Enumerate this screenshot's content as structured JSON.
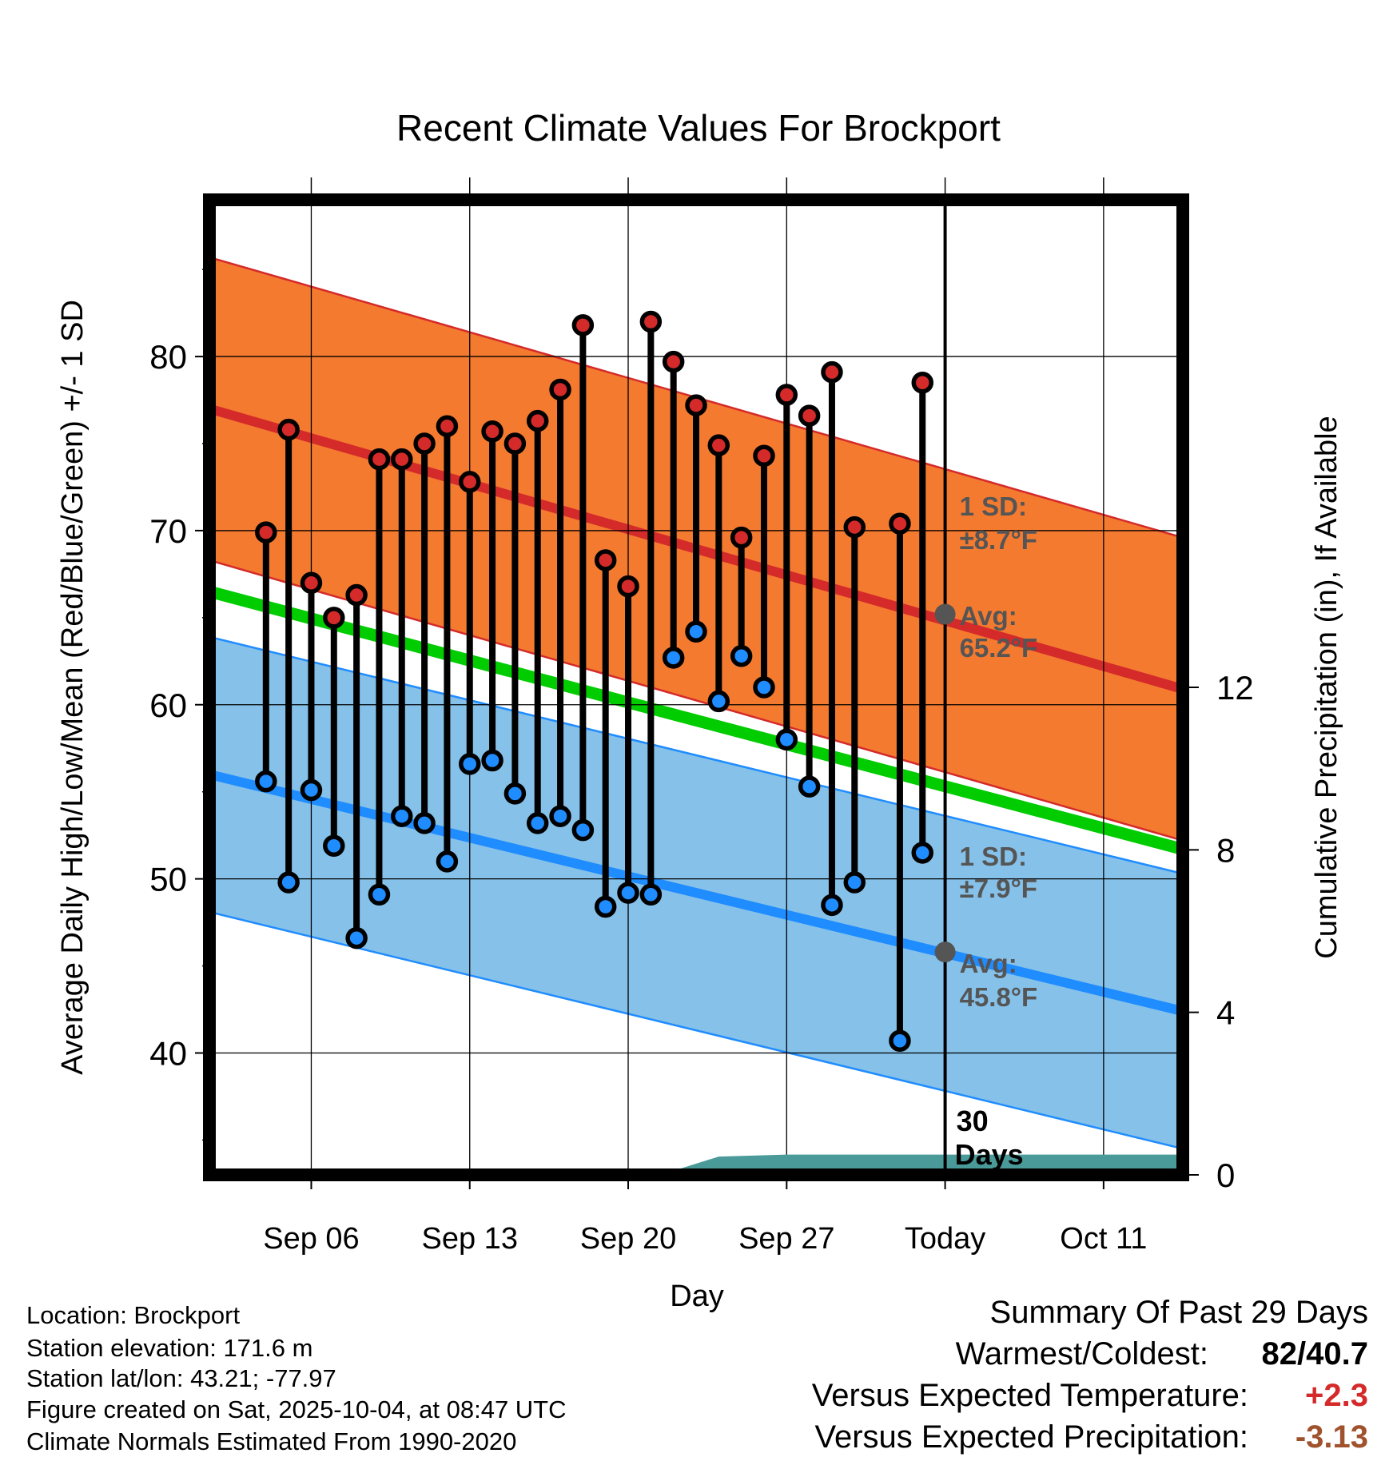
{
  "chart_data": {
    "type": "line",
    "title": "Recent Climate Values For Brockport",
    "xlabel": "Day",
    "ylabel": "Average Daily High/Low/Mean (Red/Blue/Green) +/- 1 SD",
    "y2label": "Cumulative Precipitation (in), If Available",
    "ylim": [
      33,
      89
    ],
    "y2lim": [
      0,
      24
    ],
    "xlim_days": [
      -32.5,
      10.5
    ],
    "x_ticks": [
      {
        "day": -28,
        "label": "Sep 06"
      },
      {
        "day": -21,
        "label": "Sep 13"
      },
      {
        "day": -14,
        "label": "Sep 20"
      },
      {
        "day": -7,
        "label": "Sep 27"
      },
      {
        "day": 0,
        "label": "Today"
      },
      {
        "day": 7,
        "label": "Oct 11"
      }
    ],
    "y_ticks": [
      40,
      50,
      60,
      70,
      80
    ],
    "y_minor_ticks": [
      35,
      45,
      55,
      65,
      75,
      85
    ],
    "y2_ticks": [
      0,
      4,
      8,
      12
    ],
    "normal_high": {
      "start": 77.0,
      "end": 60.9,
      "sd": 8.7
    },
    "normal_low": {
      "start": 56.0,
      "end": 42.4,
      "sd": 7.9
    },
    "normal_mean": {
      "start": 66.5,
      "end": 51.7
    },
    "today_marker": {
      "label_days": "30",
      "label_unit": "Days"
    },
    "annotations": {
      "high_sd_label": "1 SD:",
      "high_sd_value": "±8.7°F",
      "high_avg_label": "Avg:",
      "high_avg_value": "65.2°F",
      "high_avg": 65.2,
      "low_sd_label": "1 SD:",
      "low_sd_value": "±7.9°F",
      "low_avg_label": "Avg:",
      "low_avg_value": "45.8°F",
      "low_avg": 45.8
    },
    "daily": [
      {
        "day": -30,
        "high": 69.9,
        "low": 55.6
      },
      {
        "day": -29,
        "high": 75.8,
        "low": 49.8
      },
      {
        "day": -28,
        "high": 67.0,
        "low": 55.1
      },
      {
        "day": -27,
        "high": 65.0,
        "low": 51.9
      },
      {
        "day": -26,
        "high": 66.3,
        "low": 46.6
      },
      {
        "day": -25,
        "high": 74.1,
        "low": 49.1
      },
      {
        "day": -24,
        "high": 74.1,
        "low": 53.6
      },
      {
        "day": -23,
        "high": 75.0,
        "low": 53.2
      },
      {
        "day": -22,
        "high": 76.0,
        "low": 51.0
      },
      {
        "day": -21,
        "high": 72.8,
        "low": 56.6
      },
      {
        "day": -20,
        "high": 75.7,
        "low": 56.8
      },
      {
        "day": -19,
        "high": 75.0,
        "low": 54.9
      },
      {
        "day": -18,
        "high": 76.3,
        "low": 53.2
      },
      {
        "day": -17,
        "high": 78.1,
        "low": 53.6
      },
      {
        "day": -16,
        "high": 81.8,
        "low": 52.8
      },
      {
        "day": -15,
        "high": 68.3,
        "low": 48.4
      },
      {
        "day": -14,
        "high": 66.8,
        "low": 49.2
      },
      {
        "day": -13,
        "high": 82.0,
        "low": 49.1
      },
      {
        "day": -12,
        "high": 79.7,
        "low": 62.7
      },
      {
        "day": -11,
        "high": 77.2,
        "low": 64.2
      },
      {
        "day": -10,
        "high": 74.9,
        "low": 60.2
      },
      {
        "day": -9,
        "high": 69.6,
        "low": 62.8
      },
      {
        "day": -8,
        "high": 74.3,
        "low": 61.0
      },
      {
        "day": -7,
        "high": 77.8,
        "low": 58.0
      },
      {
        "day": -6,
        "high": 76.6,
        "low": 55.3
      },
      {
        "day": -5,
        "high": 79.1,
        "low": 48.5
      },
      {
        "day": -4,
        "high": 70.2,
        "low": 49.8
      },
      {
        "day": -2,
        "high": 70.4,
        "low": 40.7
      },
      {
        "day": -1,
        "high": 78.5,
        "low": 51.5
      }
    ],
    "precip_cumulative": [
      {
        "day": -32,
        "value": 0.0
      },
      {
        "day": -30,
        "value": 0.05
      },
      {
        "day": -14,
        "value": 0.05
      },
      {
        "day": -12,
        "value": 0.1
      },
      {
        "day": -10,
        "value": 0.45
      },
      {
        "day": -7,
        "value": 0.5
      },
      {
        "day": 10.5,
        "value": 0.5
      }
    ],
    "colors": {
      "high": "#d42a2a",
      "high_band": "#f47a30",
      "low": "#1f8cff",
      "low_band": "#85c1e9",
      "mean": "#00cc00",
      "precip": "#4a9a9a",
      "annotation": "#555555"
    }
  },
  "footer": {
    "location": "Location: Brockport",
    "elevation": "Station elevation: 171.6 m",
    "latlon": "Station lat/lon: 43.21; -77.97",
    "created": "Figure created on Sat, 2025-10-04, at 08:47 UTC",
    "normals": "Climate Normals Estimated From 1990-2020"
  },
  "summary": {
    "title": "Summary Of Past 29 Days",
    "warmest_label": "Warmest/Coldest:",
    "warmest_value": "82/40.7",
    "temp_label": "Versus Expected Temperature:",
    "temp_value": "+2.3",
    "temp_color": "#d42a2a",
    "precip_label": "Versus Expected Precipitation:",
    "precip_value": "-3.13",
    "precip_color": "#a0522d"
  }
}
